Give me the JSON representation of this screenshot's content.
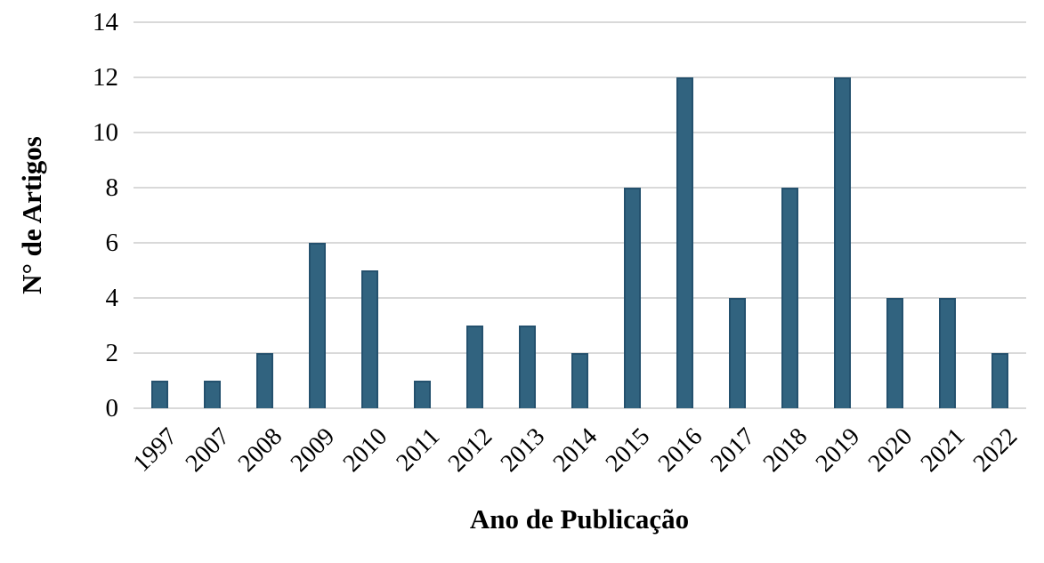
{
  "chart_data": {
    "type": "bar",
    "title": "",
    "xlabel": "Ano de Publicação",
    "ylabel": "N° de Artigos",
    "categories": [
      "1997",
      "2007",
      "2008",
      "2009",
      "2010",
      "2011",
      "2012",
      "2013",
      "2014",
      "2015",
      "2016",
      "2017",
      "2018",
      "2019",
      "2020",
      "2021",
      "2022"
    ],
    "values": [
      1,
      1,
      2,
      6,
      5,
      1,
      3,
      3,
      2,
      8,
      12,
      4,
      8,
      12,
      4,
      4,
      2
    ],
    "ylim": [
      0,
      14
    ],
    "yticks": [
      0,
      2,
      4,
      6,
      8,
      10,
      12,
      14
    ],
    "grid": true,
    "legend_position": "none",
    "colors": {
      "bar_fill": "#31637F",
      "bar_border": "#24516E",
      "gridline": "#D9D9D9",
      "text": "#000000",
      "background": "#FFFFFF"
    }
  }
}
